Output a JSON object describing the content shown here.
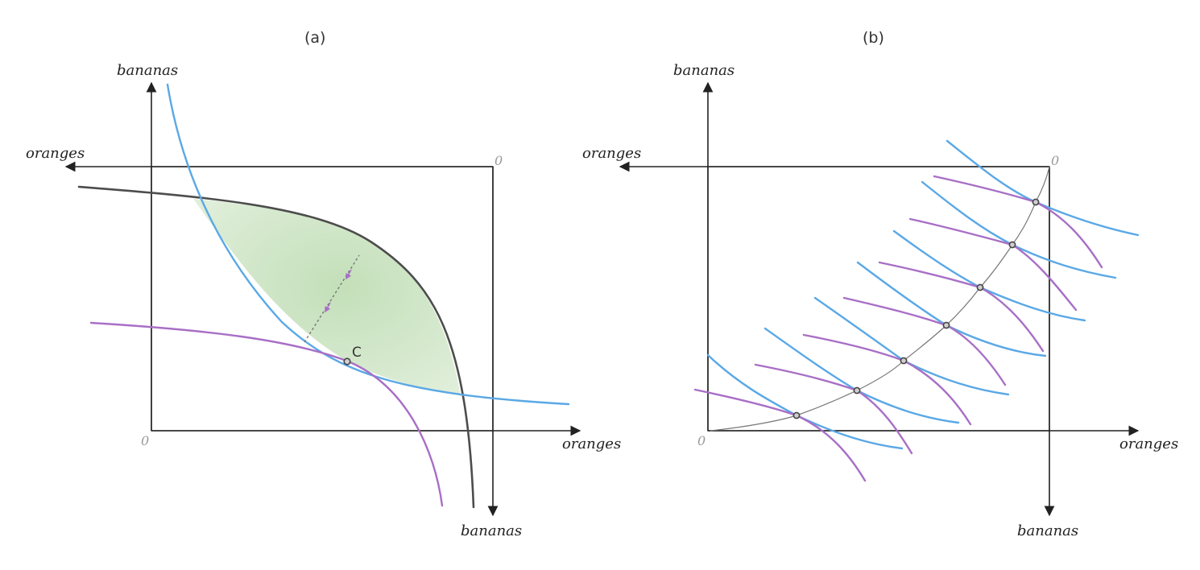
{
  "panel_a": {
    "title": "(a)",
    "labels": {
      "bananas_top": "bananas",
      "oranges_left": "oranges",
      "origin_top": "0",
      "origin_bottom": "0",
      "oranges_bottom": "oranges",
      "bananas_bottom": "bananas",
      "point_c": "C"
    }
  },
  "panel_b": {
    "title": "(b)",
    "labels": {
      "bananas_top": "bananas",
      "oranges_left": "oranges",
      "origin_top": "0",
      "origin_bottom": "0",
      "oranges_bottom": "oranges",
      "bananas_bottom": "bananas"
    }
  },
  "colors": {
    "blue_indifference": "#5aa8e6",
    "purple_indifference": "#a86fc6",
    "dark_indifference": "#4d4d4d",
    "lens_fill": "#cfe6c8",
    "axis": "#222222"
  }
}
